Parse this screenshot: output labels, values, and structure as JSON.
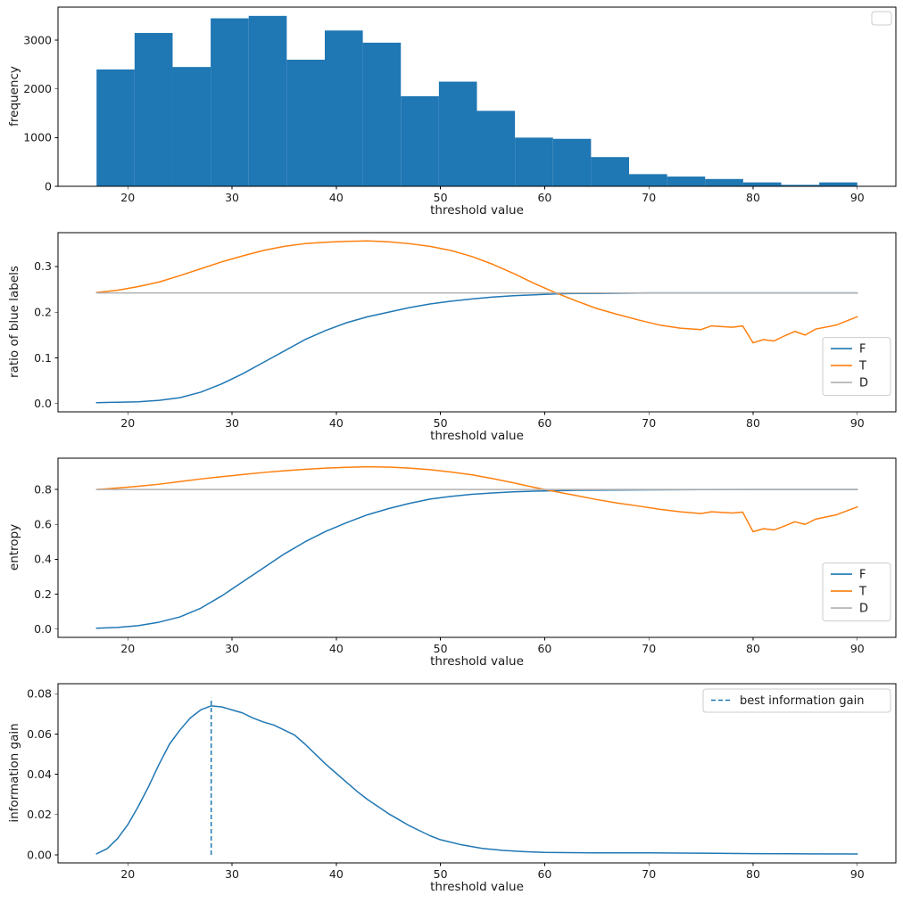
{
  "colors": {
    "blue": "#1f77b4",
    "orange": "#ff7f0e",
    "gray": "#b0b0b0",
    "spine": "#000000",
    "text": "#1a1a1a",
    "legend_border": "#cccccc",
    "background": "#ffffff"
  },
  "chart_data": [
    {
      "id": "histogram",
      "type": "bar",
      "title": "",
      "xlabel": "threshold value",
      "ylabel": "frequency",
      "xlim": [
        13.3,
        93.7
      ],
      "ylim": [
        0,
        3680
      ],
      "bin_start": 17,
      "bin_width": 3.65,
      "color": "#1f77b4",
      "values": [
        2400,
        3150,
        2450,
        3450,
        3500,
        2600,
        3200,
        2950,
        1850,
        2150,
        1550,
        1000,
        975,
        600,
        250,
        200,
        150,
        80,
        30,
        80
      ],
      "xticks": [
        20,
        30,
        40,
        50,
        60,
        70,
        80,
        90
      ],
      "xtick_labels": [
        "20",
        "30",
        "40",
        "50",
        "60",
        "70",
        "80",
        "90"
      ],
      "yticks": [
        0,
        1000,
        2000,
        3000
      ],
      "ytick_labels": [
        "0",
        "1000",
        "2000",
        "3000"
      ],
      "legend": {
        "entries": []
      }
    },
    {
      "id": "ratio",
      "type": "line",
      "title": "",
      "xlabel": "threshold value",
      "ylabel": "ratio of blue labels",
      "xlim": [
        13.3,
        93.7
      ],
      "ylim": [
        -0.018,
        0.374
      ],
      "xticks": [
        20,
        30,
        40,
        50,
        60,
        70,
        80,
        90
      ],
      "xtick_labels": [
        "20",
        "30",
        "40",
        "50",
        "60",
        "70",
        "80",
        "90"
      ],
      "yticks": [
        0.0,
        0.1,
        0.2,
        0.3
      ],
      "ytick_labels": [
        "0.0",
        "0.1",
        "0.2",
        "0.3"
      ],
      "series": [
        {
          "name": "F",
          "color": "#1f77b4",
          "x": [
            17,
            19,
            21,
            23,
            25,
            27,
            29,
            31,
            33,
            35,
            37,
            39,
            41,
            43,
            45,
            47,
            49,
            51,
            53,
            55,
            57,
            59,
            61,
            63,
            65,
            70,
            75,
            80,
            85,
            90
          ],
          "y": [
            0.002,
            0.003,
            0.004,
            0.007,
            0.013,
            0.025,
            0.043,
            0.065,
            0.09,
            0.115,
            0.14,
            0.16,
            0.177,
            0.19,
            0.2,
            0.21,
            0.218,
            0.224,
            0.229,
            0.233,
            0.236,
            0.238,
            0.24,
            0.241,
            0.241,
            0.242,
            0.242,
            0.242,
            0.242,
            0.242
          ]
        },
        {
          "name": "T",
          "color": "#ff7f0e",
          "x": [
            17,
            19,
            21,
            23,
            25,
            27,
            29,
            31,
            33,
            35,
            37,
            39,
            41,
            43,
            45,
            47,
            49,
            51,
            53,
            55,
            57,
            59,
            61,
            63,
            65,
            67,
            69,
            71,
            73,
            75,
            76,
            78,
            79,
            80,
            81,
            82,
            83,
            84,
            85,
            86,
            88,
            90
          ],
          "y": [
            0.243,
            0.248,
            0.256,
            0.266,
            0.28,
            0.295,
            0.31,
            0.323,
            0.335,
            0.344,
            0.35,
            0.353,
            0.355,
            0.356,
            0.354,
            0.35,
            0.344,
            0.335,
            0.322,
            0.305,
            0.285,
            0.263,
            0.243,
            0.225,
            0.208,
            0.195,
            0.183,
            0.172,
            0.165,
            0.162,
            0.17,
            0.167,
            0.17,
            0.133,
            0.14,
            0.137,
            0.148,
            0.158,
            0.15,
            0.163,
            0.172,
            0.19
          ]
        },
        {
          "name": "D",
          "color": "#b0b0b0",
          "x": [
            17,
            90
          ],
          "y": [
            0.242,
            0.242
          ]
        }
      ],
      "legend": {
        "position": "right",
        "entries": [
          {
            "label": "F",
            "color": "#1f77b4"
          },
          {
            "label": "T",
            "color": "#ff7f0e"
          },
          {
            "label": "D",
            "color": "#b0b0b0"
          }
        ]
      }
    },
    {
      "id": "entropy",
      "type": "line",
      "title": "",
      "xlabel": "threshold value",
      "ylabel": "entropy",
      "xlim": [
        13.3,
        93.7
      ],
      "ylim": [
        -0.047,
        0.979
      ],
      "xticks": [
        20,
        30,
        40,
        50,
        60,
        70,
        80,
        90
      ],
      "xtick_labels": [
        "20",
        "30",
        "40",
        "50",
        "60",
        "70",
        "80",
        "90"
      ],
      "yticks": [
        0.0,
        0.2,
        0.4,
        0.6,
        0.8
      ],
      "ytick_labels": [
        "0.0",
        "0.2",
        "0.4",
        "0.6",
        "0.8"
      ],
      "series": [
        {
          "name": "F",
          "color": "#1f77b4",
          "x": [
            17,
            19,
            21,
            23,
            25,
            27,
            29,
            31,
            33,
            35,
            37,
            39,
            41,
            43,
            45,
            47,
            49,
            51,
            53,
            55,
            57,
            59,
            61,
            63,
            65,
            70,
            75,
            80,
            85,
            90
          ],
          "y": [
            0.005,
            0.01,
            0.02,
            0.04,
            0.07,
            0.12,
            0.19,
            0.27,
            0.35,
            0.43,
            0.5,
            0.56,
            0.61,
            0.655,
            0.69,
            0.72,
            0.745,
            0.76,
            0.772,
            0.78,
            0.786,
            0.79,
            0.793,
            0.795,
            0.796,
            0.798,
            0.799,
            0.8,
            0.8,
            0.8
          ]
        },
        {
          "name": "T",
          "color": "#ff7f0e",
          "x": [
            17,
            19,
            21,
            23,
            25,
            27,
            29,
            31,
            33,
            35,
            37,
            39,
            41,
            43,
            45,
            47,
            49,
            51,
            53,
            55,
            57,
            59,
            61,
            63,
            65,
            67,
            69,
            71,
            73,
            75,
            76,
            78,
            79,
            80,
            81,
            82,
            83,
            84,
            85,
            86,
            88,
            90
          ],
          "y": [
            0.8,
            0.808,
            0.818,
            0.83,
            0.845,
            0.86,
            0.873,
            0.885,
            0.897,
            0.907,
            0.915,
            0.922,
            0.927,
            0.93,
            0.928,
            0.922,
            0.913,
            0.9,
            0.884,
            0.862,
            0.838,
            0.812,
            0.788,
            0.765,
            0.742,
            0.722,
            0.705,
            0.687,
            0.672,
            0.662,
            0.672,
            0.665,
            0.67,
            0.558,
            0.575,
            0.568,
            0.59,
            0.615,
            0.6,
            0.63,
            0.655,
            0.7
          ]
        },
        {
          "name": "D",
          "color": "#b0b0b0",
          "x": [
            17,
            90
          ],
          "y": [
            0.8,
            0.8
          ]
        }
      ],
      "legend": {
        "position": "right",
        "entries": [
          {
            "label": "F",
            "color": "#1f77b4"
          },
          {
            "label": "T",
            "color": "#ff7f0e"
          },
          {
            "label": "D",
            "color": "#b0b0b0"
          }
        ]
      }
    },
    {
      "id": "infogain",
      "type": "line",
      "title": "",
      "xlabel": "threshold value",
      "ylabel": "information gain",
      "xlim": [
        13.3,
        93.7
      ],
      "ylim": [
        -0.004,
        0.085
      ],
      "xticks": [
        20,
        30,
        40,
        50,
        60,
        70,
        80,
        90
      ],
      "xtick_labels": [
        "20",
        "30",
        "40",
        "50",
        "60",
        "70",
        "80",
        "90"
      ],
      "yticks": [
        0.0,
        0.02,
        0.04,
        0.06,
        0.08
      ],
      "ytick_labels": [
        "0.00",
        "0.02",
        "0.04",
        "0.06",
        "0.08"
      ],
      "series": [
        {
          "name": "information gain",
          "color": "#1f77b4",
          "x": [
            17,
            18,
            19,
            20,
            21,
            22,
            23,
            24,
            25,
            26,
            27,
            28,
            29,
            30,
            31,
            32,
            33,
            34,
            35,
            36,
            37,
            38,
            39,
            40,
            41,
            42,
            43,
            44,
            45,
            46,
            47,
            48,
            49,
            50,
            52,
            54,
            56,
            58,
            60,
            65,
            70,
            75,
            80,
            85,
            90
          ],
          "y": [
            0.0005,
            0.003,
            0.008,
            0.015,
            0.024,
            0.034,
            0.045,
            0.055,
            0.062,
            0.068,
            0.072,
            0.074,
            0.0735,
            0.072,
            0.0705,
            0.068,
            0.066,
            0.0645,
            0.062,
            0.0595,
            0.055,
            0.05,
            0.045,
            0.0405,
            0.036,
            0.0315,
            0.0275,
            0.024,
            0.0205,
            0.0175,
            0.0145,
            0.012,
            0.0095,
            0.0075,
            0.005,
            0.0032,
            0.0022,
            0.0016,
            0.0012,
            0.001,
            0.001,
            0.0008,
            0.0006,
            0.0005,
            0.0004
          ]
        }
      ],
      "vline": {
        "x": 28,
        "y0": 0,
        "y1": 0.078,
        "color": "#1f77b4",
        "label": "best information gain"
      },
      "legend": {
        "position": "top-right",
        "entries": [
          {
            "label": "best information gain",
            "color": "#1f77b4",
            "dash": true
          }
        ]
      }
    }
  ]
}
